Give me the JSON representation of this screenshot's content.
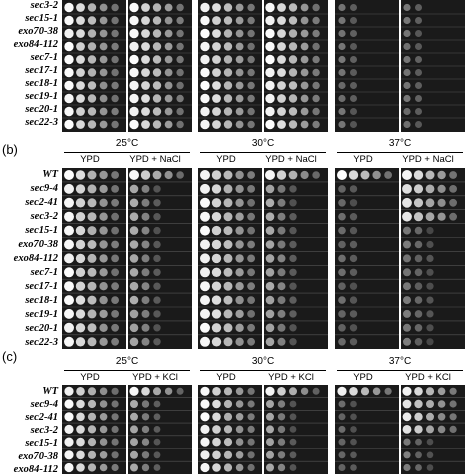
{
  "panels": [
    {
      "letter": "",
      "strains": [
        "sec3-2",
        "sec15-1",
        "exo70-38",
        "exo84-112",
        "sec7-1",
        "sec17-1",
        "sec18-1",
        "sec19-1",
        "sec20-1",
        "sec22-3"
      ],
      "temperatures": [],
      "media": []
    },
    {
      "letter": "(b)",
      "strains": [
        "WT",
        "sec9-4",
        "sec2-41",
        "sec3-2",
        "sec15-1",
        "exo70-38",
        "exo84-112",
        "sec7-1",
        "sec17-1",
        "sec18-1",
        "sec19-1",
        "sec20-1",
        "sec22-3"
      ],
      "temperatures": [
        "25°C",
        "30°C",
        "37°C"
      ],
      "media": [
        "YPD",
        "YPD + NaCl"
      ]
    },
    {
      "letter": "(c)",
      "strains": [
        "WT",
        "sec9-4",
        "sec2-41",
        "sec3-2",
        "sec15-1",
        "exo70-38",
        "exo84-112"
      ],
      "temperatures": [
        "25°C",
        "30°C",
        "37°C"
      ],
      "media": [
        "YPD",
        "YPD + KCl"
      ]
    }
  ]
}
